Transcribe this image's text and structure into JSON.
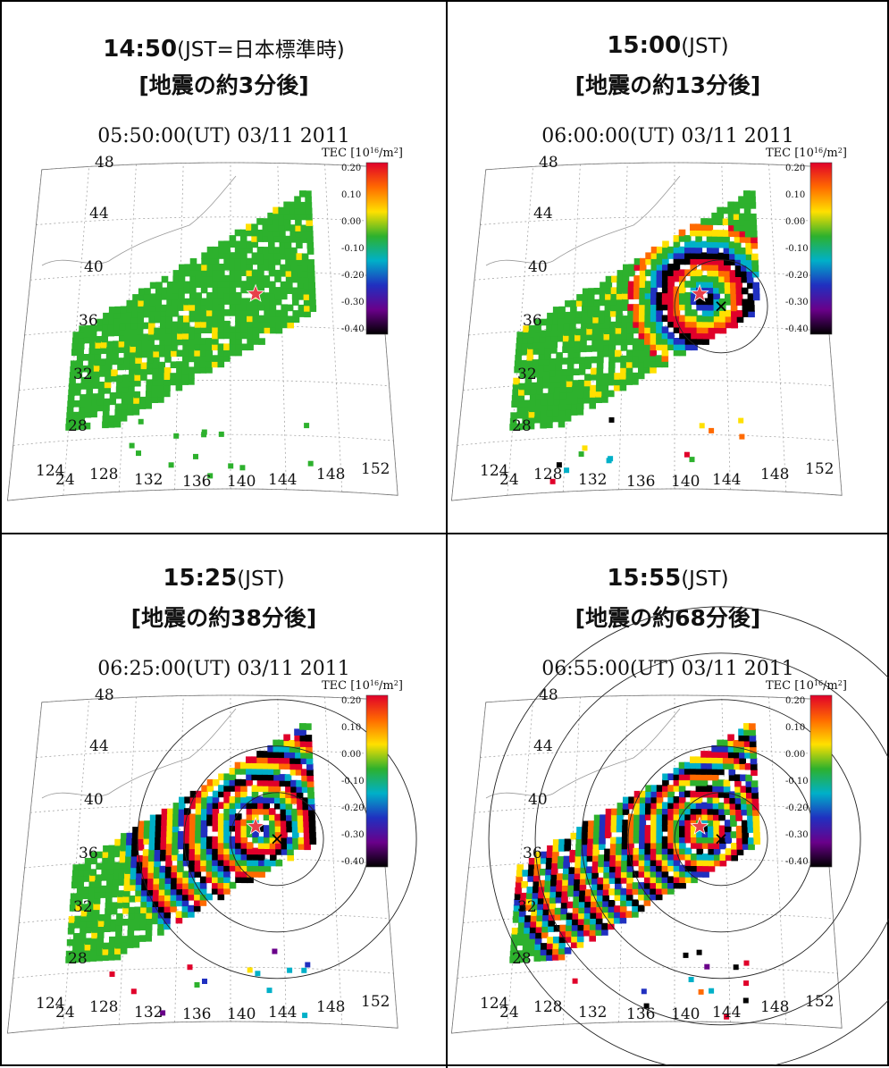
{
  "chart_data": [
    {
      "type": "heatmap",
      "title_time": "14:50",
      "title_tz": "(JST=日本標準時)",
      "subtitle": "[地震の約3分後]",
      "ut_label": "05:50:00(UT)  03/11 2011",
      "stage": 0,
      "rings": [],
      "show_x": false
    },
    {
      "type": "heatmap",
      "title_time": "15:00",
      "title_tz": "(JST)",
      "subtitle": "[地震の約13分後]",
      "ut_label": "06:00:00(UT)  03/11 2011",
      "stage": 1,
      "rings": [
        1
      ],
      "show_x": true
    },
    {
      "type": "heatmap",
      "title_time": "15:25",
      "title_tz": "(JST)",
      "subtitle": "[地震の約38分後]",
      "ut_label": "06:25:00(UT)  03/11 2011",
      "stage": 2,
      "rings": [
        1,
        2,
        3
      ],
      "show_x": true
    },
    {
      "type": "heatmap",
      "title_time": "15:55",
      "title_tz": "(JST)",
      "subtitle": "[地震の約68分後]",
      "ut_label": "06:55:00(UT)  03/11 2011",
      "stage": 3,
      "rings": [
        1,
        2,
        3,
        4,
        5
      ],
      "show_x": true
    }
  ],
  "axes": {
    "lat_ticks": [
      "48",
      "44",
      "40",
      "36",
      "32",
      "28",
      "24"
    ],
    "lon_ticks": [
      "124",
      "128",
      "132",
      "136",
      "140",
      "144",
      "148",
      "152"
    ]
  },
  "colorbar": {
    "label_prefix": "TEC [10",
    "label_exp": "16",
    "label_suffix": "/m",
    "label_sq": "2",
    "label_close": "]",
    "ticks": [
      "0.20",
      "0.10",
      "0.00",
      "-0.10",
      "-0.20",
      "-0.30",
      "-0.40"
    ],
    "colors": [
      "#e0002a",
      "#ff6a00",
      "#ffe000",
      "#2db12d",
      "#00b0c8",
      "#2030c0",
      "#6a008a",
      "#000000"
    ]
  },
  "colors": {
    "land_green": "#2db12d",
    "epicenter_star": "#e8404a"
  }
}
